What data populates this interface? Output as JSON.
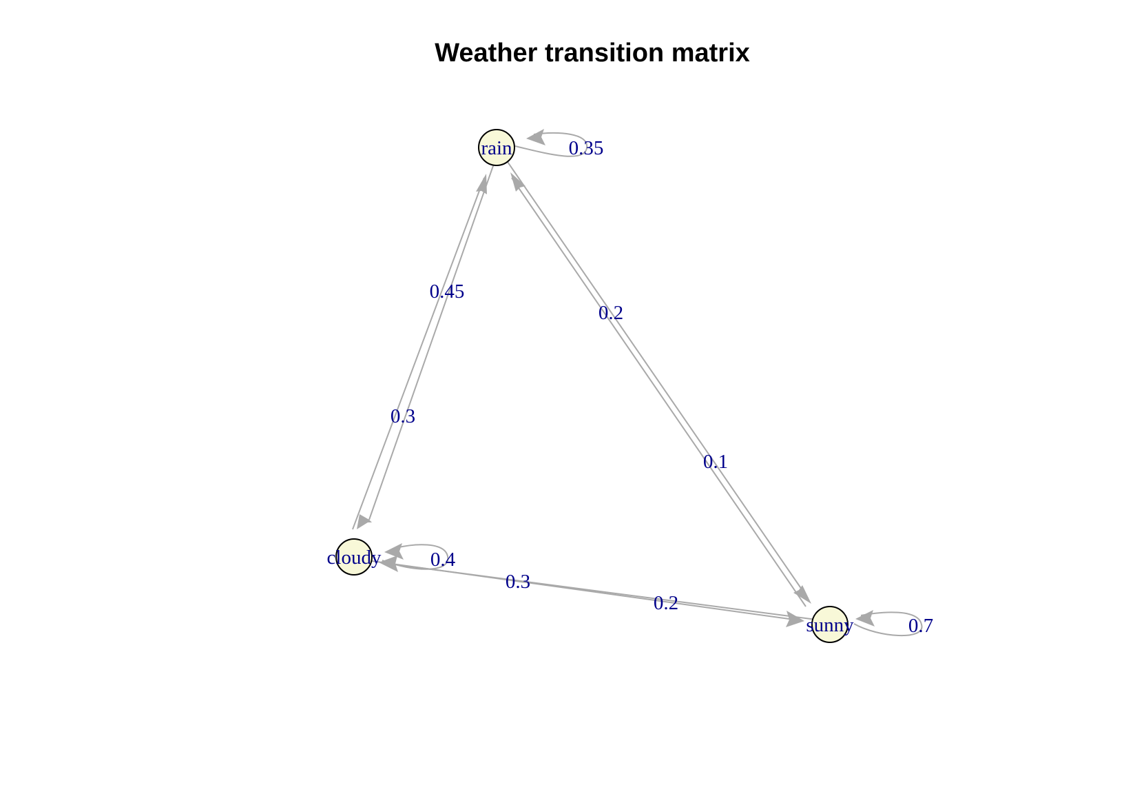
{
  "title": "Weather transition matrix",
  "nodes": [
    {
      "id": "rain",
      "label": "rain"
    },
    {
      "id": "cloudy",
      "label": "cloudy"
    },
    {
      "id": "sunny",
      "label": "sunny"
    }
  ],
  "edges": [
    {
      "from": "rain",
      "to": "rain",
      "label": "0.35"
    },
    {
      "from": "rain",
      "to": "cloudy",
      "label": "0.3"
    },
    {
      "from": "rain",
      "to": "sunny",
      "label": "0.1"
    },
    {
      "from": "cloudy",
      "to": "rain",
      "label": "0.45"
    },
    {
      "from": "cloudy",
      "to": "cloudy",
      "label": "0.4"
    },
    {
      "from": "cloudy",
      "to": "sunny",
      "label": "0.2"
    },
    {
      "from": "sunny",
      "to": "rain",
      "label": "0.2"
    },
    {
      "from": "sunny",
      "to": "cloudy",
      "label": "0.3"
    },
    {
      "from": "sunny",
      "to": "sunny",
      "label": "0.7"
    }
  ],
  "colors": {
    "edge": "#a9a9a9",
    "label": "#00008b",
    "node_fill": "#f8f8d8",
    "node_border": "#000000"
  }
}
